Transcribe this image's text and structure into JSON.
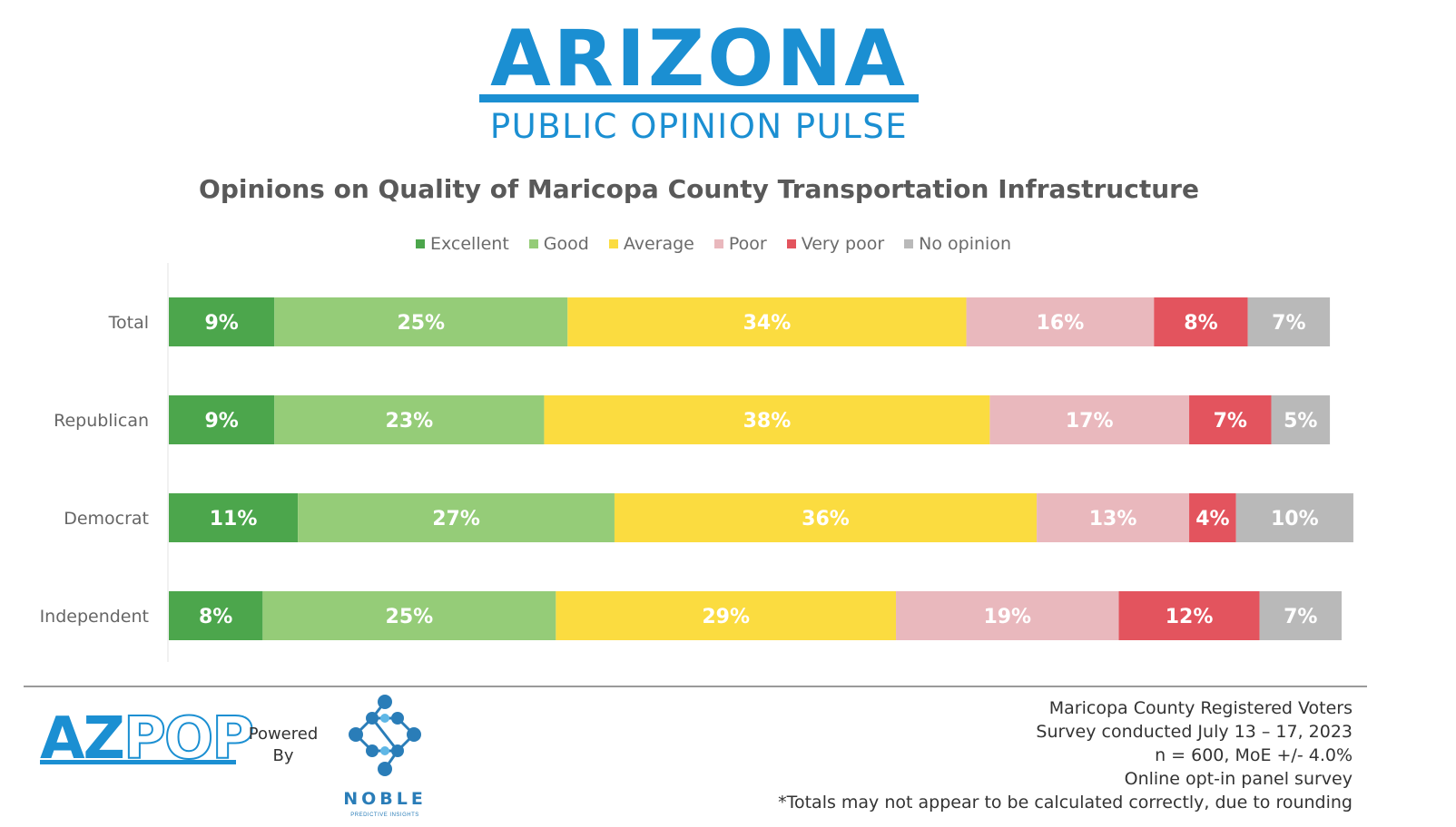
{
  "header": {
    "logo_title": "ARIZONA",
    "logo_subtitle": "PUBLIC OPINION PULSE"
  },
  "colors": {
    "brand_blue": "#1b8fd2",
    "excellent": "#4ca64c",
    "good": "#95cc78",
    "average": "#fbdc40",
    "poor": "#e9b8bd",
    "very_poor": "#e3545e",
    "no_opinion": "#b9b9b9"
  },
  "chart_data": {
    "type": "bar",
    "orientation": "horizontal",
    "stacked": true,
    "title": "Opinions on Quality of Maricopa County Transportation Infrastructure",
    "xlabel": "",
    "ylabel": "",
    "xlim": [
      0,
      100
    ],
    "grid": false,
    "legend_position": "top",
    "categories": [
      "Total",
      "Republican",
      "Democrat",
      "Independent"
    ],
    "series": [
      {
        "name": "Excellent",
        "color": "#4ca64c",
        "values": [
          9,
          9,
          11,
          8
        ]
      },
      {
        "name": "Good",
        "color": "#95cc78",
        "values": [
          25,
          23,
          27,
          25
        ]
      },
      {
        "name": "Average",
        "color": "#fbdc40",
        "values": [
          34,
          38,
          36,
          29
        ]
      },
      {
        "name": "Poor",
        "color": "#e9b8bd",
        "values": [
          16,
          17,
          13,
          19
        ]
      },
      {
        "name": "Very poor",
        "color": "#e3545e",
        "values": [
          8,
          7,
          4,
          12
        ]
      },
      {
        "name": "No opinion",
        "color": "#b9b9b9",
        "values": [
          7,
          5,
          10,
          7
        ]
      }
    ],
    "label_suffix": "%"
  },
  "footer": {
    "azpop_a": "AZ",
    "azpop_b": "POP",
    "powered_by_line1": "Powered",
    "powered_by_line2": "By",
    "noble_name": "NOBLE",
    "noble_tagline": "PREDICTIVE INSIGHTS",
    "notes": [
      "Maricopa County Registered Voters",
      "Survey conducted July 13 – 17, 2023",
      "n = 600, MoE +/- 4.0%",
      "Online opt-in panel survey",
      "*Totals may not appear to be calculated correctly, due to rounding"
    ]
  }
}
